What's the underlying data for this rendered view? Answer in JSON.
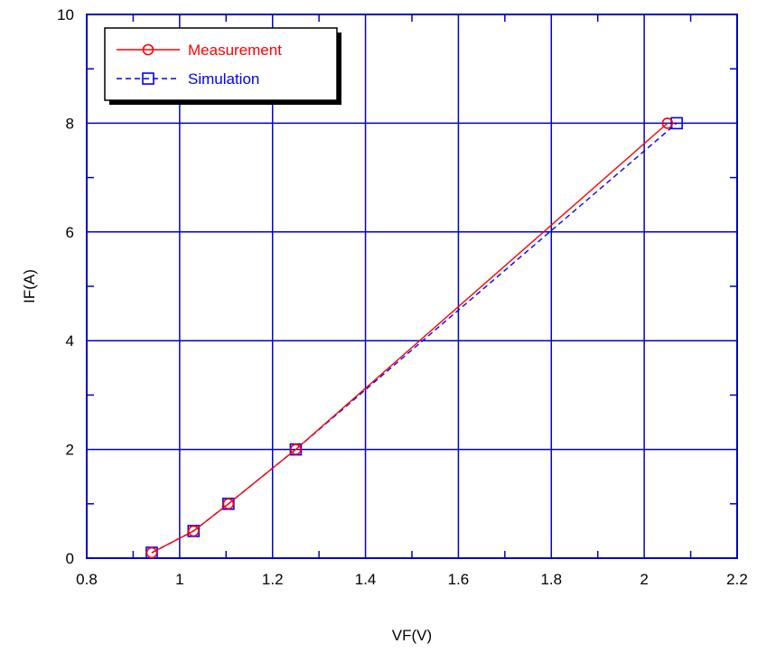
{
  "chart_data": {
    "type": "line",
    "xlabel": "VF(V)",
    "ylabel": "IF(A)",
    "xlim": [
      0.8,
      2.2
    ],
    "ylim": [
      0,
      10
    ],
    "xticks": [
      "0.8",
      "1",
      "1.2",
      "1.4",
      "1.6",
      "1.8",
      "2",
      "2.2"
    ],
    "yticks": [
      "0",
      "2",
      "4",
      "6",
      "8",
      "10"
    ],
    "grid": true,
    "legend_position": "top-left",
    "series": [
      {
        "name": "Measurement",
        "color": "#ff0000",
        "line_style": "solid",
        "marker": "circle",
        "x": [
          0.94,
          1.03,
          1.105,
          1.25,
          2.05
        ],
        "y": [
          0.1,
          0.5,
          1.0,
          2.0,
          8.0
        ]
      },
      {
        "name": "Simulation",
        "color": "#0000ff",
        "line_style": "dashed",
        "marker": "square",
        "x": [
          0.94,
          1.03,
          1.105,
          1.25,
          2.07
        ],
        "y": [
          0.1,
          0.5,
          1.0,
          2.0,
          8.0
        ]
      }
    ]
  },
  "colors": {
    "frame": "#0000cc",
    "grid": "#0000cc"
  }
}
